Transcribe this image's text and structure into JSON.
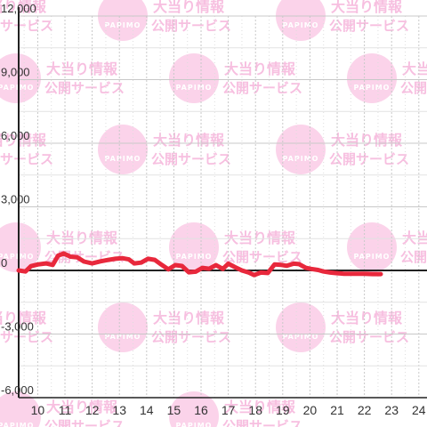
{
  "watermark": {
    "line1": "大当り情報",
    "line2": "公開サービス",
    "brand": "PAPIMO",
    "color": "#f7bfe0"
  },
  "chart_data": {
    "type": "line",
    "title": "",
    "xlabel": "",
    "ylabel": "",
    "xlim": [
      9.3,
      24.3
    ],
    "ylim": [
      -6000,
      12000
    ],
    "x_ticks": [
      10,
      11,
      12,
      13,
      14,
      15,
      16,
      17,
      18,
      19,
      20,
      21,
      22,
      23,
      24
    ],
    "y_ticks": [
      12000,
      9000,
      6000,
      3000,
      0,
      -3000,
      -6000
    ],
    "y_tick_labels": [
      "12,000",
      "9,000",
      "6,000",
      "3,000",
      "0",
      "-3,000",
      "-6,000"
    ],
    "grid": true,
    "line_color": "#e8283c",
    "series": [
      {
        "x": [
          9.3,
          9.55,
          9.75,
          10.0,
          10.3,
          10.55,
          10.75,
          10.95,
          11.2,
          11.45,
          11.7,
          12.0,
          12.3,
          12.6,
          12.85,
          13.1,
          13.35,
          13.55,
          13.8,
          14.05,
          14.3,
          14.55,
          14.8,
          15.05,
          15.3,
          15.55,
          15.8,
          16.05,
          16.3,
          16.55,
          16.8,
          17.0,
          17.25,
          17.5,
          17.75,
          17.95,
          18.2,
          18.45,
          18.7,
          18.95,
          19.15,
          19.4,
          19.6,
          19.85,
          20.05,
          20.3,
          20.5,
          20.75,
          21.0,
          21.25,
          21.5,
          21.75,
          22.0,
          22.3,
          22.6
        ],
        "y": [
          0,
          -50,
          200,
          280,
          330,
          260,
          700,
          800,
          650,
          620,
          420,
          330,
          430,
          500,
          550,
          580,
          520,
          330,
          370,
          550,
          500,
          270,
          50,
          250,
          210,
          -90,
          -60,
          120,
          80,
          250,
          70,
          320,
          150,
          0,
          -100,
          -220,
          -100,
          -120,
          280,
          260,
          220,
          320,
          300,
          120,
          70,
          20,
          -50,
          -100,
          -130,
          -160,
          -160,
          -160,
          -160,
          -170,
          -170
        ]
      }
    ]
  }
}
